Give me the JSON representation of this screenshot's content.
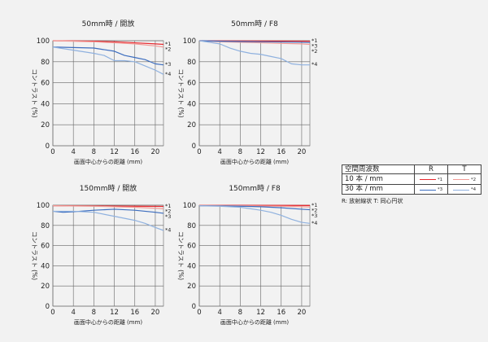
{
  "colors": {
    "r10": "#e8292f",
    "t10": "#f19a96",
    "r30": "#3c6dbf",
    "t30": "#8fb1df",
    "grid": "#666666",
    "text": "#222222"
  },
  "chart_data": [
    {
      "type": "line",
      "title": "50mm時 / 開放",
      "xlabel": "画面中心からの距離 (mm)",
      "ylabel": "コントラスト (%)",
      "xlim": [
        0,
        21.6
      ],
      "ylim": [
        0,
        100
      ],
      "xticks": [
        "0",
        "4",
        "8",
        "12",
        "16",
        "20"
      ],
      "yticks": [
        "0",
        "20",
        "40",
        "60",
        "80",
        "100"
      ],
      "series": [
        {
          "name": "R 10本/mm",
          "tag": "*1",
          "color_key": "r10",
          "points": [
            [
              0,
              100
            ],
            [
              4,
              99.8
            ],
            [
              8,
              99.5
            ],
            [
              12,
              99
            ],
            [
              16,
              98
            ],
            [
              20,
              97
            ],
            [
              21.6,
              96.5
            ]
          ]
        },
        {
          "name": "T 10本/mm",
          "tag": "*2",
          "color_key": "t10",
          "points": [
            [
              0,
              100
            ],
            [
              4,
              99.5
            ],
            [
              8,
              99
            ],
            [
              12,
              98
            ],
            [
              16,
              97
            ],
            [
              20,
              95
            ],
            [
              21.6,
              94
            ]
          ]
        },
        {
          "name": "R 30本/mm",
          "tag": "*3",
          "color_key": "r30",
          "points": [
            [
              0,
              94
            ],
            [
              4,
              93.5
            ],
            [
              8,
              93
            ],
            [
              12,
              90
            ],
            [
              14,
              86
            ],
            [
              16,
              84
            ],
            [
              18,
              82
            ],
            [
              20,
              78
            ],
            [
              21.6,
              77
            ]
          ]
        },
        {
          "name": "T 30本/mm",
          "tag": "*4",
          "color_key": "t30",
          "points": [
            [
              0,
              94
            ],
            [
              4,
              91
            ],
            [
              8,
              88
            ],
            [
              10,
              86
            ],
            [
              12,
              81
            ],
            [
              14,
              81
            ],
            [
              16,
              80
            ],
            [
              18,
              76
            ],
            [
              20,
              72
            ],
            [
              21.6,
              68
            ]
          ]
        }
      ]
    },
    {
      "type": "line",
      "title": "50mm時 / F8",
      "xlabel": "画面中心からの距離 (mm)",
      "ylabel": "コントラスト (%)",
      "xlim": [
        0,
        21.6
      ],
      "ylim": [
        0,
        100
      ],
      "xticks": [
        "0",
        "4",
        "8",
        "12",
        "16",
        "20"
      ],
      "yticks": [
        "0",
        "20",
        "40",
        "60",
        "80",
        "100"
      ],
      "series": [
        {
          "name": "R 10本/mm",
          "tag": "*1",
          "color_key": "r10",
          "points": [
            [
              0,
              100
            ],
            [
              8,
              99.8
            ],
            [
              16,
              99.6
            ],
            [
              21.6,
              99.5
            ]
          ]
        },
        {
          "name": "T 10本/mm",
          "tag": "*2",
          "color_key": "t10",
          "points": [
            [
              0,
              100
            ],
            [
              4,
              99
            ],
            [
              8,
              98.5
            ],
            [
              12,
              98
            ],
            [
              16,
              97.5
            ],
            [
              20,
              97
            ],
            [
              21.6,
              96.5
            ]
          ]
        },
        {
          "name": "R 30本/mm",
          "tag": "*3",
          "color_key": "r30",
          "points": [
            [
              0,
              100
            ],
            [
              4,
              99.5
            ],
            [
              8,
              99.2
            ],
            [
              12,
              99
            ],
            [
              16,
              98.8
            ],
            [
              20,
              98.5
            ],
            [
              21.6,
              98.3
            ]
          ]
        },
        {
          "name": "T 30本/mm",
          "tag": "*4",
          "color_key": "t30",
          "points": [
            [
              0,
              100
            ],
            [
              4,
              97
            ],
            [
              6,
              93
            ],
            [
              8,
              90
            ],
            [
              10,
              88
            ],
            [
              12,
              87
            ],
            [
              14,
              85
            ],
            [
              16,
              83
            ],
            [
              18,
              78
            ],
            [
              20,
              77
            ],
            [
              21.6,
              77
            ]
          ]
        }
      ]
    },
    {
      "type": "line",
      "title": "150mm時 / 開放",
      "xlabel": "画面中心からの距離 (mm)",
      "ylabel": "コントラスト (%)",
      "xlim": [
        0,
        21.6
      ],
      "ylim": [
        0,
        100
      ],
      "xticks": [
        "0",
        "4",
        "8",
        "12",
        "16",
        "20"
      ],
      "yticks": [
        "0",
        "20",
        "40",
        "60",
        "80",
        "100"
      ],
      "series": [
        {
          "name": "R 10本/mm",
          "tag": "*1",
          "color_key": "r10",
          "points": [
            [
              0,
              99.5
            ],
            [
              8,
              99.3
            ],
            [
              16,
              99
            ],
            [
              21.6,
              98.8
            ]
          ]
        },
        {
          "name": "T 10本/mm",
          "tag": "*2",
          "color_key": "t10",
          "points": [
            [
              0,
              99.5
            ],
            [
              8,
              99
            ],
            [
              12,
              98.5
            ],
            [
              16,
              98
            ],
            [
              20,
              97
            ],
            [
              21.6,
              96.5
            ]
          ]
        },
        {
          "name": "R 30本/mm",
          "tag": "*3",
          "color_key": "r30",
          "points": [
            [
              0,
              94
            ],
            [
              2,
              93
            ],
            [
              4,
              93.5
            ],
            [
              8,
              95
            ],
            [
              12,
              96
            ],
            [
              16,
              95
            ],
            [
              20,
              93
            ],
            [
              21.6,
              92
            ]
          ]
        },
        {
          "name": "T 30本/mm",
          "tag": "*4",
          "color_key": "t30",
          "points": [
            [
              0,
              94
            ],
            [
              4,
              94
            ],
            [
              8,
              93
            ],
            [
              12,
              89
            ],
            [
              14,
              87
            ],
            [
              16,
              85
            ],
            [
              18,
              82
            ],
            [
              20,
              78
            ],
            [
              21.6,
              75
            ]
          ]
        }
      ]
    },
    {
      "type": "line",
      "title": "150mm時 / F8",
      "xlabel": "画面中心からの距離 (mm)",
      "ylabel": "コントラスト (%)",
      "xlim": [
        0,
        21.6
      ],
      "ylim": [
        0,
        100
      ],
      "xticks": [
        "0",
        "4",
        "8",
        "12",
        "16",
        "20"
      ],
      "yticks": [
        "0",
        "20",
        "40",
        "60",
        "80",
        "100"
      ],
      "series": [
        {
          "name": "R 10本/mm",
          "tag": "*1",
          "color_key": "r10",
          "points": [
            [
              0,
              100
            ],
            [
              8,
              99.9
            ],
            [
              16,
              99.8
            ],
            [
              21.6,
              99.7
            ]
          ]
        },
        {
          "name": "T 10本/mm",
          "tag": "*2",
          "color_key": "t10",
          "points": [
            [
              0,
              100
            ],
            [
              8,
              99.5
            ],
            [
              16,
              99
            ],
            [
              20,
              98.5
            ],
            [
              21.6,
              98.3
            ]
          ]
        },
        {
          "name": "R 30本/mm",
          "tag": "*3",
          "color_key": "r30",
          "points": [
            [
              0,
              99.5
            ],
            [
              4,
              99.3
            ],
            [
              8,
              99
            ],
            [
              12,
              98.5
            ],
            [
              16,
              97.5
            ],
            [
              20,
              96
            ],
            [
              21.6,
              95.5
            ]
          ]
        },
        {
          "name": "T 30本/mm",
          "tag": "*4",
          "color_key": "t30",
          "points": [
            [
              0,
              99.5
            ],
            [
              4,
              99
            ],
            [
              8,
              98
            ],
            [
              12,
              95
            ],
            [
              14,
              93
            ],
            [
              16,
              90
            ],
            [
              18,
              86
            ],
            [
              20,
              83
            ],
            [
              21.6,
              82
            ]
          ]
        }
      ]
    }
  ],
  "legend": {
    "header": {
      "freq": "空間周波数",
      "r": "R",
      "t": "T"
    },
    "rows": [
      {
        "label": "10 本 / mm",
        "r_tag": "*1",
        "t_tag": "*2"
      },
      {
        "label": "30 本 / mm",
        "r_tag": "*3",
        "t_tag": "*4"
      }
    ],
    "note": "R: 放射線状  T: 同心円状"
  }
}
